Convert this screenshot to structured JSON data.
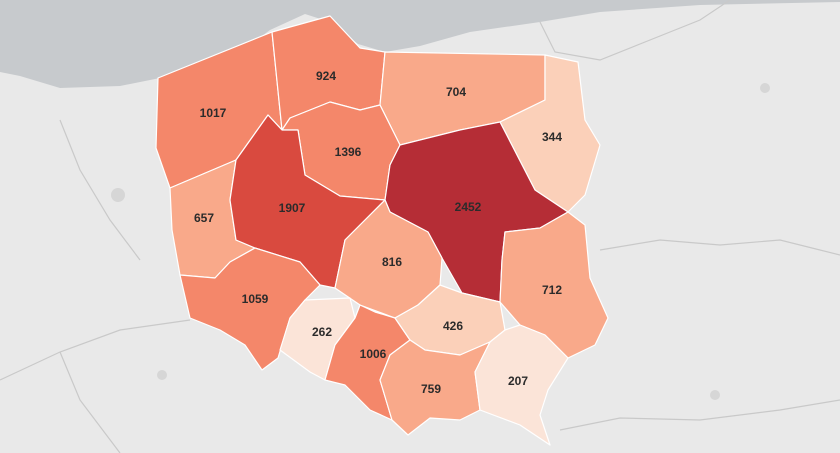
{
  "map": {
    "colors": {
      "background": "#e9e9e9",
      "sea": "#c7cacd",
      "border": "#c9c9c9",
      "scale": [
        "#fbe4d8",
        "#fbd0b9",
        "#f9a98a",
        "#f4876a",
        "#e9694f",
        "#d94a3f",
        "#b52d36"
      ]
    },
    "regions": [
      {
        "id": "zachodniopomorskie",
        "value": "1017",
        "color": "#f4876a"
      },
      {
        "id": "pomorskie",
        "value": "924",
        "color": "#f4876a"
      },
      {
        "id": "warminsko-mazurskie",
        "value": "704",
        "color": "#f9a98a"
      },
      {
        "id": "podlaskie",
        "value": "344",
        "color": "#fbd0b9"
      },
      {
        "id": "kujawsko-pomorskie",
        "value": "1396",
        "color": "#f4876a"
      },
      {
        "id": "lubuskie",
        "value": "657",
        "color": "#f9a98a"
      },
      {
        "id": "wielkopolskie",
        "value": "1907",
        "color": "#d94a3f"
      },
      {
        "id": "mazowieckie",
        "value": "2452",
        "color": "#b52d36"
      },
      {
        "id": "lodzkie",
        "value": "816",
        "color": "#f9a98a"
      },
      {
        "id": "lubelskie",
        "value": "712",
        "color": "#f9a98a"
      },
      {
        "id": "dolnoslaskie",
        "value": "1059",
        "color": "#f4876a"
      },
      {
        "id": "opolskie",
        "value": "262",
        "color": "#fbe4d8"
      },
      {
        "id": "slaskie",
        "value": "1006",
        "color": "#f4876a"
      },
      {
        "id": "swietokrzyskie",
        "value": "426",
        "color": "#fbd0b9"
      },
      {
        "id": "malopolskie",
        "value": "759",
        "color": "#f9a98a"
      },
      {
        "id": "podkarpackie",
        "value": "207",
        "color": "#fbe4d8"
      }
    ]
  }
}
